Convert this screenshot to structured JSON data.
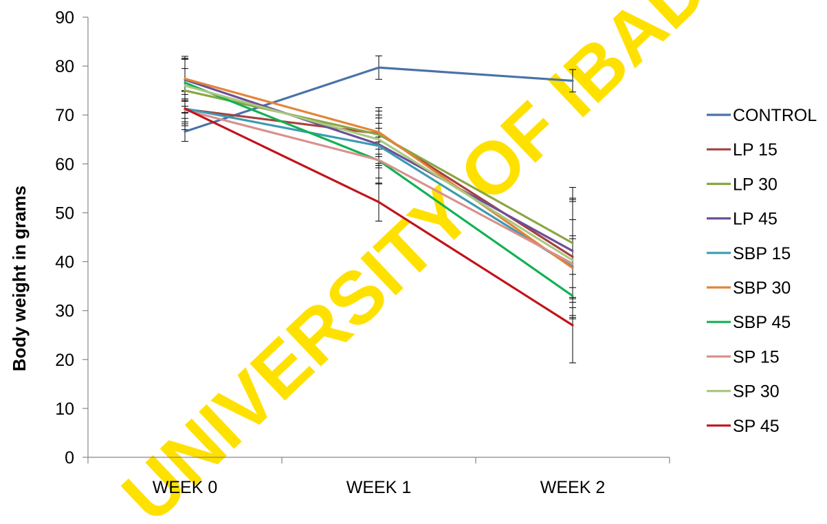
{
  "chart_data": {
    "type": "line",
    "title": "",
    "xlabel": "",
    "ylabel": "Body weight in grams",
    "ylim": [
      0,
      90
    ],
    "yticks": [
      0,
      10,
      20,
      30,
      40,
      50,
      60,
      70,
      80,
      90
    ],
    "categories": [
      "WEEK 0",
      "WEEK 1",
      "WEEK 2"
    ],
    "grid": false,
    "legend_position": "right",
    "error_bars": true,
    "series": [
      {
        "name": "CONTROL",
        "color": "#4a72a9",
        "values": [
          66.6,
          79.7,
          77.0
        ],
        "errors": [
          2.0,
          2.4,
          2.3
        ]
      },
      {
        "name": "LP 15",
        "color": "#a5403d",
        "values": [
          71.2,
          66.2,
          41.0
        ],
        "errors": [
          3.0,
          3.2,
          12.0
        ]
      },
      {
        "name": "LP 30",
        "color": "#8aa544",
        "values": [
          75.0,
          66.0,
          43.8
        ],
        "errors": [
          4.5,
          4.0,
          11.4
        ]
      },
      {
        "name": "LP 45",
        "color": "#6e4f96",
        "values": [
          77.2,
          64.0,
          42.2
        ],
        "errors": [
          4.2,
          4.3,
          10.5
        ]
      },
      {
        "name": "SBP 15",
        "color": "#3c9bb2",
        "values": [
          71.3,
          63.7,
          39.0
        ],
        "errors": [
          3.5,
          3.6,
          6.3
        ]
      },
      {
        "name": "SBP 30",
        "color": "#e28538",
        "values": [
          77.4,
          66.5,
          38.7
        ],
        "errors": [
          4.6,
          5.0,
          6.0
        ]
      },
      {
        "name": "SBP 45",
        "color": "#13b152",
        "values": [
          76.6,
          60.7,
          33.0
        ],
        "errors": [
          4.8,
          4.8,
          4.4
        ]
      },
      {
        "name": "SP 15",
        "color": "#d9918f",
        "values": [
          71.0,
          60.8,
          39.6
        ],
        "errors": [
          4.0,
          3.7,
          9.0
        ]
      },
      {
        "name": "SP 30",
        "color": "#a9c981",
        "values": [
          76.0,
          65.0,
          40.3
        ],
        "errors": [
          5.6,
          5.8,
          12.0
        ]
      },
      {
        "name": "SP 45",
        "color": "#c2131b",
        "values": [
          71.3,
          52.2,
          27.0
        ],
        "errors": [
          2.0,
          3.9,
          7.7
        ]
      }
    ]
  },
  "watermark": {
    "text": "UNIVERSITY OF IBADAN LIBRARY",
    "color": "#ffe100"
  }
}
